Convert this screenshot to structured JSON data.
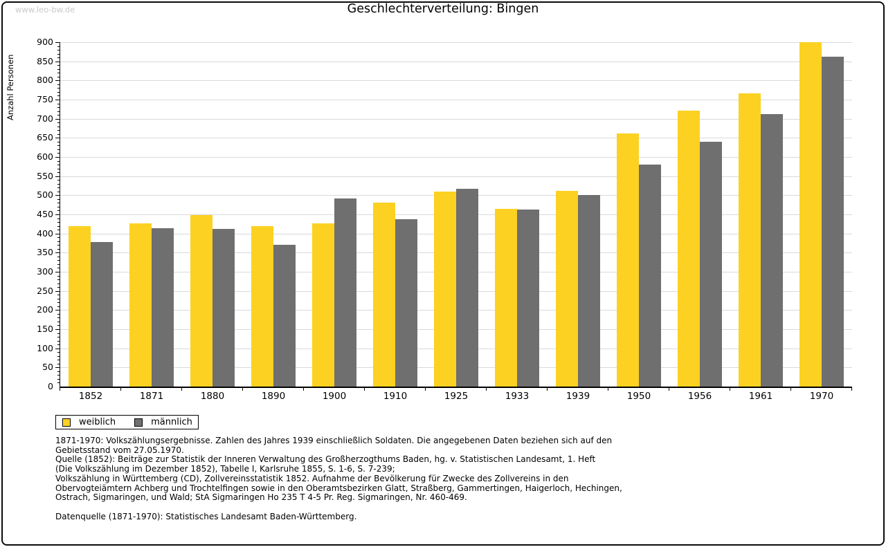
{
  "watermark": "www.leo-bw.de",
  "header": {
    "title": "Geschlechterverteilung: Bingen"
  },
  "chart_data": {
    "type": "bar",
    "title": "Geschlechterverteilung: Bingen",
    "xlabel": "",
    "ylabel": "Anzahl Personen",
    "ylim": [
      0,
      900
    ],
    "ytick_step": 50,
    "minor_tick_step": 10,
    "grid": true,
    "legend_position": "bottom-left",
    "categories": [
      "1852",
      "1871",
      "1880",
      "1890",
      "1900",
      "1910",
      "1925",
      "1933",
      "1939",
      "1950",
      "1956",
      "1961",
      "1970"
    ],
    "series": [
      {
        "name": "weiblich",
        "color": "#FCD122",
        "values": [
          420,
          427,
          449,
          420,
          427,
          481,
          510,
          465,
          512,
          662,
          721,
          766,
          900
        ]
      },
      {
        "name": "männlich",
        "color": "#6F6F6F",
        "values": [
          378,
          414,
          412,
          371,
          492,
          438,
          517,
          463,
          500,
          581,
          640,
          712,
          862
        ]
      }
    ]
  },
  "notes": {
    "lines": [
      "1871-1970: Volkszählungsergebnisse. Zahlen des Jahres 1939 einschließlich Soldaten. Die angegebenen Daten beziehen sich auf den",
      "Gebietsstand vom 27.05.1970.",
      "Quelle (1852): Beiträge zur Statistik der Inneren Verwaltung des Großherzogthums Baden, hg. v. Statistischen Landesamt, 1. Heft",
      "(Die Volkszählung im Dezember 1852), Tabelle I, Karlsruhe 1855, S. 1-6, S. 7-239;",
      "Volkszählung in Württemberg (CD), Zollvereinsstatistik 1852. Aufnahme der Bevölkerung für Zwecke des Zollvereins in den",
      "Obervogteiämtern Achberg und Trochtelfingen sowie in den Oberamtsbezirken Glatt, Straßberg, Gammertingen, Haigerloch, Hechingen,",
      "Ostrach, Sigmaringen, und Wald; StA Sigmaringen Ho 235 T 4-5 Pr. Reg. Sigmaringen, Nr. 460-469.",
      "",
      "Datenquelle (1871-1970): Statistisches Landesamt Baden-Württemberg."
    ]
  },
  "colors": {
    "background": "#FFFFFF",
    "frame_border": "#0A0A0A",
    "gridline": "#D9D9D9",
    "watermark": "#C9C9C9",
    "female_bar": "#FCD122",
    "male_bar": "#6F6F6F"
  }
}
